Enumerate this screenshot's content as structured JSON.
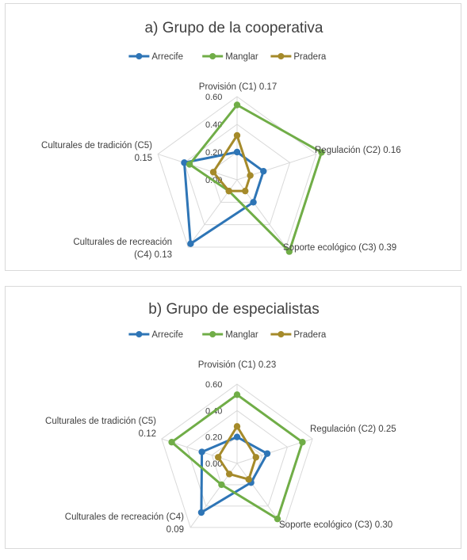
{
  "chart_data": [
    {
      "type": "radar",
      "title": "a) Grupo de la cooperativa",
      "categories": [
        "Provisión (C1) 0.17",
        "Regulación (C2) 0.16",
        "Soporte ecológico (C3) 0.39",
        "Culturales de recreación (C4) 0.13",
        "Culturales de tradición (C5) 0.15"
      ],
      "category_lines": [
        [
          "Provisión (C1) 0.17"
        ],
        [
          "Regulación (C2) 0.16"
        ],
        [
          "Soporte ecológico (C3) 0.39"
        ],
        [
          "Culturales de recreación",
          "(C4) 0.13"
        ],
        [
          "Culturales de tradición (C5)",
          "0.15"
        ]
      ],
      "ticks": [
        "0.00",
        "0.20",
        "0.40",
        "0.60"
      ],
      "rlim": [
        0,
        0.6
      ],
      "legend_position": "top",
      "series": [
        {
          "name": "Arrecife",
          "color": "#2e75b6",
          "values": [
            0.2,
            0.2,
            0.2,
            0.57,
            0.4
          ]
        },
        {
          "name": "Manglar",
          "color": "#70ad47",
          "values": [
            0.54,
            0.64,
            0.64,
            0.1,
            0.36
          ]
        },
        {
          "name": "Pradera",
          "color": "#a58a2a",
          "values": [
            0.32,
            0.1,
            0.1,
            0.1,
            0.18
          ]
        }
      ]
    },
    {
      "type": "radar",
      "title": "b) Grupo de especialistas",
      "categories": [
        "Provisión (C1) 0.23",
        "Regulación (C2) 0.25",
        "Soporte ecológico (C3) 0.30",
        "Culturales de recreación (C4) 0.09",
        "Culturales de tradición (C5) 0.12"
      ],
      "category_lines": [
        [
          "Provisión (C1) 0.23"
        ],
        [
          "Regulación (C2) 0.25"
        ],
        [
          "Soporte ecológico (C3) 0.30"
        ],
        [
          "Culturales de recreación (C4)",
          "0.09"
        ],
        [
          "Culturales de tradición (C5)",
          "0.12"
        ]
      ],
      "ticks": [
        "0.00",
        "0.20",
        "0.40",
        "0.60"
      ],
      "rlim": [
        0,
        0.6
      ],
      "legend_position": "top",
      "series": [
        {
          "name": "Arrecife",
          "color": "#2e75b6",
          "values": [
            0.2,
            0.24,
            0.18,
            0.46,
            0.28
          ]
        },
        {
          "name": "Manglar",
          "color": "#70ad47",
          "values": [
            0.52,
            0.52,
            0.52,
            0.2,
            0.52
          ]
        },
        {
          "name": "Pradera",
          "color": "#a58a2a",
          "values": [
            0.28,
            0.15,
            0.15,
            0.1,
            0.15
          ]
        }
      ]
    }
  ]
}
